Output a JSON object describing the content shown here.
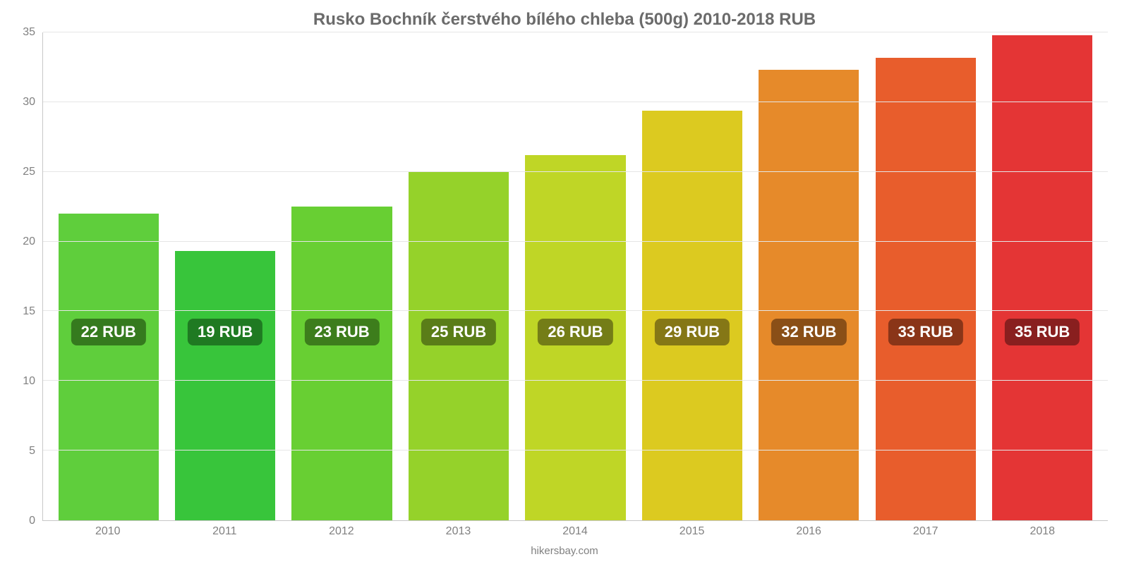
{
  "chart": {
    "type": "bar",
    "title": "Rusko Bochník čerstvého bílého chleba (500g) 2010-2018 RUB",
    "title_color": "#6b6b6b",
    "title_fontsize": 24,
    "title_fontweight": 700,
    "source": "hikersbay.com",
    "source_color": "#808080",
    "source_fontsize": 15,
    "background_color": "#ffffff",
    "axis_line_color": "#c7c7c7",
    "grid_color": "#e6e6e6",
    "y": {
      "min": 0,
      "max": 35,
      "tick_step": 5,
      "ticks": [
        0,
        5,
        10,
        15,
        20,
        25,
        30,
        35
      ],
      "tick_fontsize": 16,
      "tick_color": "#808080"
    },
    "x": {
      "categories": [
        "2010",
        "2011",
        "2012",
        "2013",
        "2014",
        "2015",
        "2016",
        "2017",
        "2018"
      ],
      "tick_fontsize": 16,
      "tick_color": "#808080"
    },
    "bars": [
      {
        "year": "2010",
        "value": 22.0,
        "label": "22 RUB",
        "color": "#5fce3c",
        "badge_bg": "#357a1e"
      },
      {
        "year": "2011",
        "value": 19.3,
        "label": "19 RUB",
        "color": "#38c53b",
        "badge_bg": "#1f7a22"
      },
      {
        "year": "2012",
        "value": 22.5,
        "label": "23 RUB",
        "color": "#68cf33",
        "badge_bg": "#3d7d1c"
      },
      {
        "year": "2013",
        "value": 25.0,
        "label": "25 RUB",
        "color": "#95d22a",
        "badge_bg": "#5a7d18"
      },
      {
        "year": "2014",
        "value": 26.2,
        "label": "26 RUB",
        "color": "#bfd626",
        "badge_bg": "#747d17"
      },
      {
        "year": "2015",
        "value": 29.4,
        "label": "29 RUB",
        "color": "#dcca20",
        "badge_bg": "#857716"
      },
      {
        "year": "2016",
        "value": 32.3,
        "label": "32 RUB",
        "color": "#e68a2a",
        "badge_bg": "#8a4f17"
      },
      {
        "year": "2017",
        "value": 33.2,
        "label": "33 RUB",
        "color": "#e85d2c",
        "badge_bg": "#8a3518"
      },
      {
        "year": "2018",
        "value": 34.8,
        "label": "35 RUB",
        "color": "#e43535",
        "badge_bg": "#891f1f"
      }
    ],
    "bar_width_ratio": 0.86,
    "badge_fontsize": 22,
    "badge_text_color": "#ffffff",
    "badge_radius": 8,
    "badge_center_value": 13.5
  }
}
